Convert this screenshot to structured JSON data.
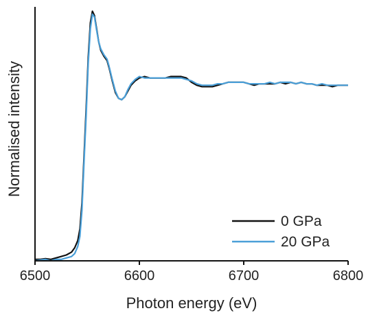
{
  "chart_data": {
    "type": "line",
    "xlabel": "Photon energy (eV)",
    "ylabel": "Normalised intensity",
    "xlim": [
      6500,
      6800
    ],
    "ylim": [
      0,
      1.75
    ],
    "x_ticks": [
      6500,
      6600,
      6700,
      6800
    ],
    "x_tick_labels": [
      "6500",
      "6600",
      "6700",
      "6800"
    ],
    "y_tick_labels": [],
    "legend_position": "bottom-right",
    "series": [
      {
        "name": "0 GPa",
        "color": "#111111",
        "points": [
          [
            6500,
            0.01
          ],
          [
            6505,
            0.01
          ],
          [
            6510,
            0.015
          ],
          [
            6515,
            0.01
          ],
          [
            6520,
            0.02
          ],
          [
            6525,
            0.03
          ],
          [
            6530,
            0.04
          ],
          [
            6535,
            0.06
          ],
          [
            6538,
            0.09
          ],
          [
            6541,
            0.14
          ],
          [
            6543,
            0.22
          ],
          [
            6545,
            0.4
          ],
          [
            6547,
            0.72
          ],
          [
            6549,
            1.05
          ],
          [
            6551,
            1.4
          ],
          [
            6553,
            1.64
          ],
          [
            6555,
            1.72
          ],
          [
            6557,
            1.69
          ],
          [
            6559,
            1.6
          ],
          [
            6561,
            1.51
          ],
          [
            6563,
            1.45
          ],
          [
            6566,
            1.41
          ],
          [
            6569,
            1.38
          ],
          [
            6571,
            1.33
          ],
          [
            6574,
            1.24
          ],
          [
            6577,
            1.16
          ],
          [
            6580,
            1.12
          ],
          [
            6583,
            1.11
          ],
          [
            6586,
            1.13
          ],
          [
            6589,
            1.17
          ],
          [
            6592,
            1.21
          ],
          [
            6596,
            1.24
          ],
          [
            6600,
            1.26
          ],
          [
            6605,
            1.27
          ],
          [
            6610,
            1.26
          ],
          [
            6615,
            1.26
          ],
          [
            6620,
            1.26
          ],
          [
            6625,
            1.26
          ],
          [
            6630,
            1.27
          ],
          [
            6635,
            1.27
          ],
          [
            6640,
            1.27
          ],
          [
            6645,
            1.26
          ],
          [
            6650,
            1.23
          ],
          [
            6655,
            1.21
          ],
          [
            6660,
            1.2
          ],
          [
            6665,
            1.2
          ],
          [
            6670,
            1.2
          ],
          [
            6675,
            1.21
          ],
          [
            6680,
            1.22
          ],
          [
            6685,
            1.23
          ],
          [
            6690,
            1.23
          ],
          [
            6695,
            1.23
          ],
          [
            6700,
            1.23
          ],
          [
            6705,
            1.22
          ],
          [
            6710,
            1.21
          ],
          [
            6715,
            1.22
          ],
          [
            6720,
            1.22
          ],
          [
            6725,
            1.22
          ],
          [
            6730,
            1.22
          ],
          [
            6735,
            1.23
          ],
          [
            6740,
            1.22
          ],
          [
            6745,
            1.23
          ],
          [
            6750,
            1.22
          ],
          [
            6755,
            1.23
          ],
          [
            6760,
            1.22
          ],
          [
            6765,
            1.22
          ],
          [
            6770,
            1.21
          ],
          [
            6775,
            1.21
          ],
          [
            6780,
            1.21
          ],
          [
            6785,
            1.2
          ],
          [
            6790,
            1.21
          ],
          [
            6795,
            1.21
          ],
          [
            6800,
            1.21
          ]
        ]
      },
      {
        "name": "20 GPa",
        "color": "#4a9fd8",
        "points": [
          [
            6500,
            0.0
          ],
          [
            6505,
            0.005
          ],
          [
            6510,
            0.01
          ],
          [
            6515,
            0.0
          ],
          [
            6520,
            0.01
          ],
          [
            6525,
            0.01
          ],
          [
            6530,
            0.02
          ],
          [
            6535,
            0.03
          ],
          [
            6538,
            0.05
          ],
          [
            6541,
            0.1
          ],
          [
            6543,
            0.17
          ],
          [
            6545,
            0.35
          ],
          [
            6547,
            0.68
          ],
          [
            6549,
            1.0
          ],
          [
            6551,
            1.36
          ],
          [
            6553,
            1.6
          ],
          [
            6555,
            1.7
          ],
          [
            6557,
            1.68
          ],
          [
            6559,
            1.59
          ],
          [
            6561,
            1.51
          ],
          [
            6563,
            1.46
          ],
          [
            6566,
            1.42
          ],
          [
            6569,
            1.39
          ],
          [
            6571,
            1.34
          ],
          [
            6574,
            1.25
          ],
          [
            6577,
            1.17
          ],
          [
            6580,
            1.12
          ],
          [
            6583,
            1.11
          ],
          [
            6586,
            1.13
          ],
          [
            6589,
            1.18
          ],
          [
            6592,
            1.22
          ],
          [
            6596,
            1.25
          ],
          [
            6600,
            1.27
          ],
          [
            6605,
            1.26
          ],
          [
            6610,
            1.26
          ],
          [
            6615,
            1.26
          ],
          [
            6620,
            1.26
          ],
          [
            6625,
            1.26
          ],
          [
            6630,
            1.26
          ],
          [
            6635,
            1.26
          ],
          [
            6640,
            1.26
          ],
          [
            6645,
            1.25
          ],
          [
            6650,
            1.24
          ],
          [
            6655,
            1.22
          ],
          [
            6660,
            1.21
          ],
          [
            6665,
            1.21
          ],
          [
            6670,
            1.21
          ],
          [
            6675,
            1.22
          ],
          [
            6680,
            1.22
          ],
          [
            6685,
            1.23
          ],
          [
            6690,
            1.23
          ],
          [
            6695,
            1.23
          ],
          [
            6700,
            1.23
          ],
          [
            6705,
            1.22
          ],
          [
            6710,
            1.22
          ],
          [
            6715,
            1.22
          ],
          [
            6720,
            1.22
          ],
          [
            6725,
            1.23
          ],
          [
            6730,
            1.22
          ],
          [
            6735,
            1.23
          ],
          [
            6740,
            1.23
          ],
          [
            6745,
            1.23
          ],
          [
            6750,
            1.22
          ],
          [
            6755,
            1.23
          ],
          [
            6760,
            1.22
          ],
          [
            6765,
            1.22
          ],
          [
            6770,
            1.21
          ],
          [
            6775,
            1.22
          ],
          [
            6780,
            1.21
          ],
          [
            6785,
            1.21
          ],
          [
            6790,
            1.21
          ],
          [
            6795,
            1.21
          ],
          [
            6800,
            1.21
          ]
        ]
      }
    ]
  }
}
